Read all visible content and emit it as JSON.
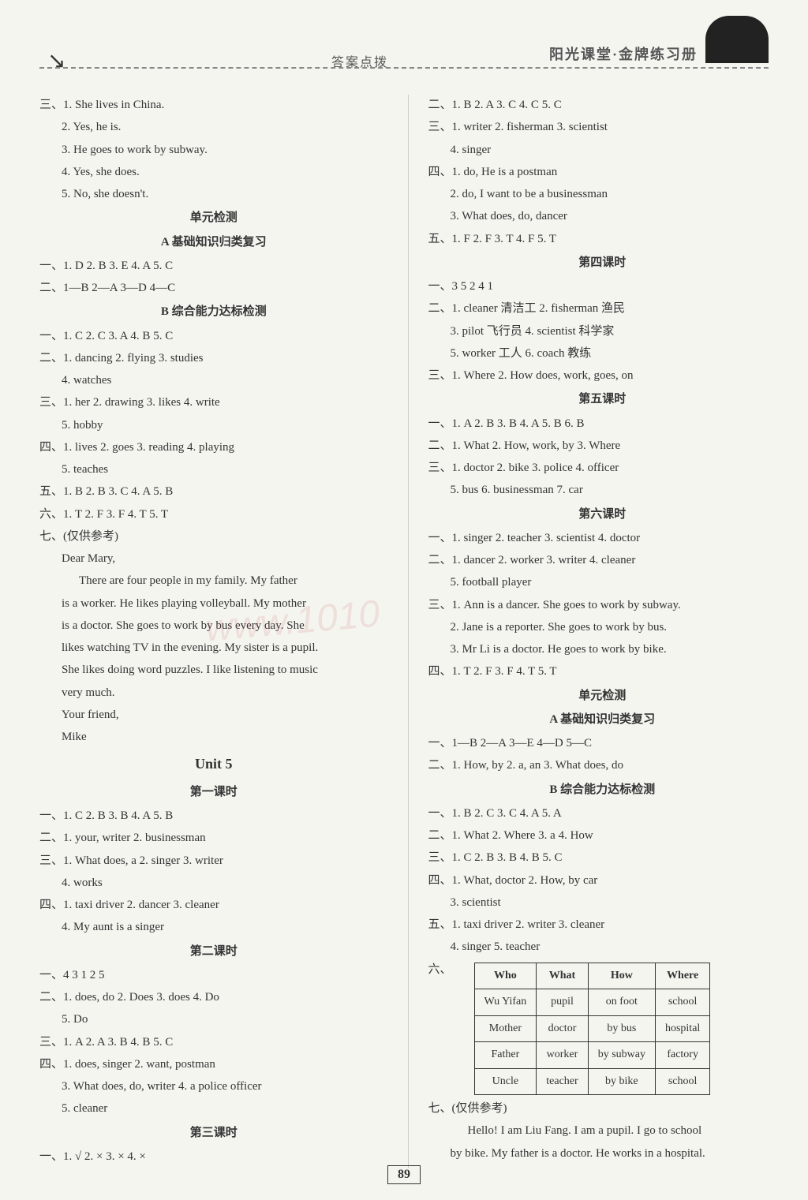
{
  "header": {
    "left": "答案点拨",
    "right": "阳光课堂·金牌练习册"
  },
  "pageNumber": "89",
  "watermark": "www.1010",
  "leftCol": {
    "intro": [
      "三、1. She lives in China.",
      "2. Yes, he is.",
      "3. He goes to work by subway.",
      "4. Yes, she does.",
      "5. No, she doesn't."
    ],
    "unitTest": "单元检测",
    "sectionA": "A 基础知识归类复习",
    "a1": "一、1. D  2. B  3. E  4. A  5. C",
    "a2": "二、1—B  2—A  3—D  4—C",
    "sectionB": "B 综合能力达标检测",
    "b1": "一、1. C  2. C  3. A  4. B  5. C",
    "b2": "二、1. dancing  2. flying  3. studies",
    "b2b": "4. watches",
    "b3": "三、1. her  2. drawing  3. likes  4. write",
    "b3b": "5. hobby",
    "b4": "四、1. lives  2. goes  3. reading  4. playing",
    "b4b": "5. teaches",
    "b5": "五、1. B  2. B  3. C  4. A  5. B",
    "b6": "六、1. T  2. F  3. F  4. T  5. T",
    "b7": "七、(仅供参考)",
    "letter": [
      "Dear Mary,",
      "There are four people in my family. My father",
      "is a worker. He likes playing volleyball. My mother",
      "is a doctor. She goes to work by bus every day. She",
      "likes watching TV in the evening. My sister is a pupil.",
      "She likes doing word puzzles. I like listening to music",
      "very much.",
      "Your friend,",
      "Mike"
    ],
    "unit5": "Unit 5",
    "lesson1": "第一课时",
    "l1_1": "一、1. C  2. B  3. B  4. A  5. B",
    "l1_2": "二、1. your, writer  2. businessman",
    "l1_3": "三、1. What does, a  2. singer  3. writer",
    "l1_3b": "4. works",
    "l1_4": "四、1. taxi driver  2. dancer  3. cleaner",
    "l1_4b": "4. My aunt is a singer",
    "lesson2": "第二课时",
    "l2_1": "一、4  3  1  2  5",
    "l2_2": "二、1. does, do  2. Does  3. does  4. Do",
    "l2_2b": "5. Do",
    "l2_3": "三、1. A  2. A  3. B  4. B  5. C",
    "l2_4": "四、1. does, singer  2. want, postman",
    "l2_4b": "3. What does, do, writer  4. a police officer",
    "l2_4c": "5. cleaner",
    "lesson3": "第三课时",
    "l3_1": "一、1. √  2. ×  3. ×  4. ×"
  },
  "rightCol": {
    "r1": "二、1. B  2. A  3. C  4. C  5. C",
    "r2": "三、1. writer  2. fisherman  3. scientist",
    "r2b": "4. singer",
    "r3": "四、1. do, He is a postman",
    "r3b": "2. do, I want to be a businessman",
    "r3c": "3. What does, do, dancer",
    "r4": "五、1. F  2. F  3. T  4. F  5. T",
    "lesson4": "第四课时",
    "l4_1": "一、3  5  2  4  1",
    "l4_2": "二、1. cleaner 清洁工  2. fisherman 渔民",
    "l4_2b": "3. pilot 飞行员  4. scientist 科学家",
    "l4_2c": "5. worker 工人  6. coach 教练",
    "l4_3": "三、1. Where  2. How does, work, goes, on",
    "lesson5": "第五课时",
    "l5_1": "一、1. A  2. B  3. B  4. A  5. B  6. B",
    "l5_2": "二、1. What  2. How, work, by  3. Where",
    "l5_3": "三、1. doctor  2. bike  3. police  4. officer",
    "l5_3b": "5. bus  6. businessman  7. car",
    "lesson6": "第六课时",
    "l6_1": "一、1. singer  2. teacher  3. scientist  4. doctor",
    "l6_2": "二、1. dancer  2. worker  3. writer  4. cleaner",
    "l6_2b": "5. football player",
    "l6_3": "三、1. Ann is a dancer. She goes to work by subway.",
    "l6_3b": "2. Jane is a reporter. She goes to work by bus.",
    "l6_3c": "3. Mr Li is a doctor. He goes to work by bike.",
    "l6_4": "四、1. T  2. F  3. F  4. T  5. T",
    "unitTest": "单元检测",
    "sectionA": "A 基础知识归类复习",
    "a1": "一、1—B  2—A  3—E  4—D  5—C",
    "a2": "二、1. How, by  2. a, an  3. What does, do",
    "sectionB": "B 综合能力达标检测",
    "b1": "一、1. B  2. C  3. C  4. A  5. A",
    "b2": "二、1. What  2. Where  3. a  4. How",
    "b3": "三、1. C  2. B  3. B  4. B  5. C",
    "b4": "四、1. What, doctor  2. How, by car",
    "b4b": "3. scientist",
    "b5": "五、1. taxi driver  2. writer  3. cleaner",
    "b5b": "4. singer  5. teacher",
    "b6": "六、",
    "table": {
      "headers": [
        "Who",
        "What",
        "How",
        "Where"
      ],
      "rows": [
        [
          "Wu Yifan",
          "pupil",
          "on foot",
          "school"
        ],
        [
          "Mother",
          "doctor",
          "by bus",
          "hospital"
        ],
        [
          "Father",
          "worker",
          "by subway",
          "factory"
        ],
        [
          "Uncle",
          "teacher",
          "by bike",
          "school"
        ]
      ]
    },
    "b7": "七、(仅供参考)",
    "essay1": "Hello! I am Liu Fang. I am a pupil. I go to school",
    "essay2": "by bike. My father is a doctor. He works in a hospital."
  }
}
